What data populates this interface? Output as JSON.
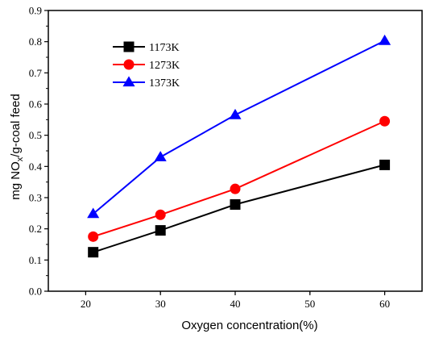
{
  "chart_data": {
    "type": "line",
    "xlabel": "Oxygen concentration(%)",
    "ylabel_main": "mg NO",
    "ylabel_sub": "x",
    "ylabel_rest": "/g-coal feed",
    "xlim": [
      15,
      65
    ],
    "ylim": [
      0.0,
      0.9
    ],
    "xticks": [
      20,
      30,
      40,
      50,
      60
    ],
    "yticks": [
      0.0,
      0.1,
      0.2,
      0.3,
      0.4,
      0.5,
      0.6,
      0.7,
      0.8,
      0.9
    ],
    "xtick_labels": [
      "20",
      "30",
      "40",
      "50",
      "60"
    ],
    "ytick_labels": [
      "0.0",
      "0.1",
      "0.2",
      "0.3",
      "0.4",
      "0.5",
      "0.6",
      "0.7",
      "0.8",
      "0.9"
    ],
    "x": [
      21,
      30,
      40,
      60
    ],
    "legend_position": "top-left",
    "grid": false,
    "series": [
      {
        "name": "1173K",
        "values": [
          0.125,
          0.195,
          0.278,
          0.405
        ],
        "color": "#000000",
        "marker": "square"
      },
      {
        "name": "1273K",
        "values": [
          0.175,
          0.245,
          0.328,
          0.545
        ],
        "color": "#ff0000",
        "marker": "circle"
      },
      {
        "name": "1373K",
        "values": [
          0.248,
          0.43,
          0.565,
          0.803
        ],
        "color": "#0000ff",
        "marker": "triangle"
      }
    ]
  }
}
